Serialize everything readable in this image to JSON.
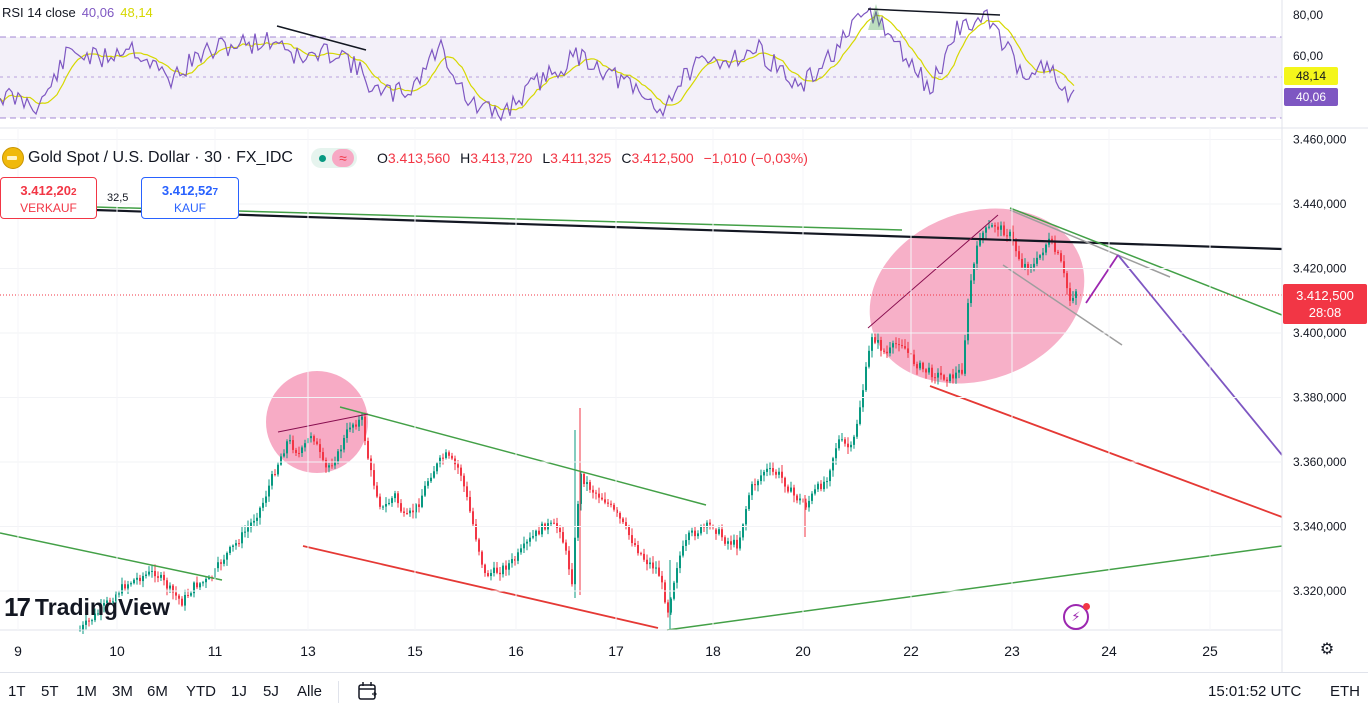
{
  "rsi": {
    "title": "RSI 14 close",
    "value": "40,06",
    "ma_value": "48,14",
    "levels": [
      "80,00",
      "60,00"
    ],
    "color_rsi": "#7e57c2",
    "color_ma": "#d6d800"
  },
  "header": {
    "symbol": "Gold Spot / U.S. Dollar · 30 · FX_IDC",
    "open_label": "O",
    "open": "3.413,560",
    "high_label": "H",
    "high": "3.413,720",
    "low_label": "L",
    "low": "3.411,325",
    "close_label": "C",
    "close": "3.412,500",
    "change": "−1,010 (−0,03%)"
  },
  "trade": {
    "sell_price": "3.412,20",
    "sell_price_small": "2",
    "sell_label": "VERKAUF",
    "buy_price": "3.412,52",
    "buy_price_small": "7",
    "buy_label": "KAUF",
    "spread": "32,5"
  },
  "last_price": {
    "price": "3.412,500",
    "countdown": "28:08",
    "color": "#f23645"
  },
  "brand": {
    "name": "TradingView"
  },
  "chart_data": {
    "type": "candlestick",
    "price_axis_ticks": [
      "3.460,000",
      "3.440,000",
      "3.420,000",
      "3.400,000",
      "3.380,000",
      "3.360,000",
      "3.340,000",
      "3.320,000"
    ],
    "price_axis_values": [
      3460,
      3440,
      3420,
      3400,
      3380,
      3360,
      3340,
      3320
    ],
    "time_axis_ticks": [
      "9",
      "10",
      "11",
      "13",
      "15",
      "16",
      "17",
      "18",
      "20",
      "22",
      "23",
      "24",
      "25"
    ],
    "ylim": [
      3306,
      3470
    ],
    "last_price": 3412.5,
    "up_color": "#089981",
    "down_color": "#f23645"
  },
  "toolbar": {
    "ranges": [
      "1T",
      "5T",
      "1M",
      "3M",
      "6M",
      "YTD",
      "1J",
      "5J",
      "Alle"
    ],
    "time": "15:01:52 UTC",
    "session": "ETH"
  }
}
